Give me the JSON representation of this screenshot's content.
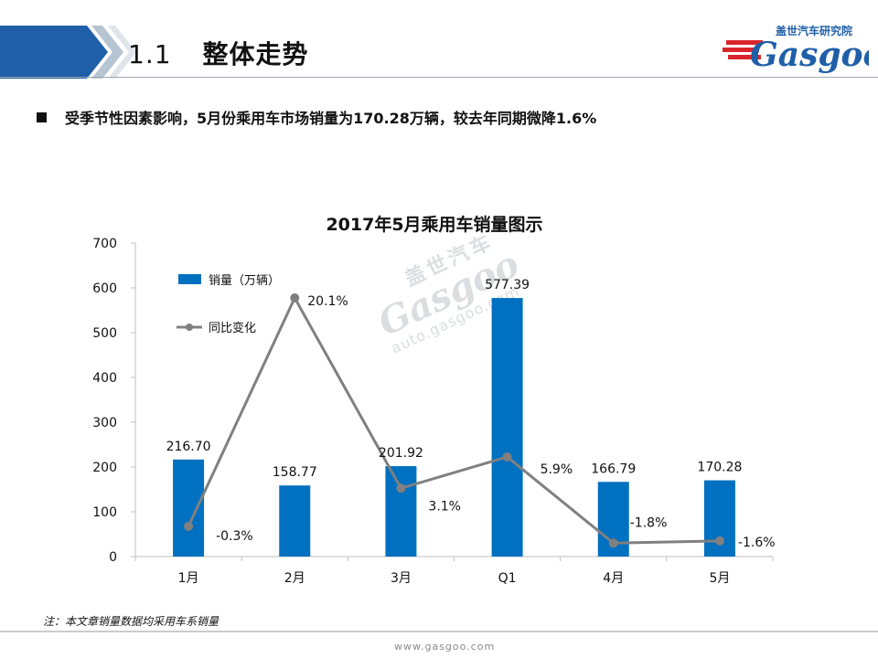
{
  "section": {
    "number": "1.1",
    "title": "整体走势"
  },
  "logo": {
    "cn": "盖世汽车研究院",
    "en": "Gasgoo"
  },
  "bullet": "受季节性因素影响，5月份乘用车市场销量为170.28万辆，较去年同期微降1.6%",
  "watermark": {
    "cn": "盖世汽车",
    "en": "Gasgoo",
    "url": "auto.gasgoo.com"
  },
  "footnote": "注：本文章销量数据均采用车系销量",
  "footer_url": "www.gasgoo.com",
  "colors": {
    "bar": "#0070c0",
    "line": "#808080",
    "header_blue": "#1f5fa8",
    "logo_red": "#d9262c"
  },
  "chart_data": {
    "type": "bar",
    "title": "2017年5月乘用车销量图示",
    "categories": [
      "1月",
      "2月",
      "3月",
      "Q1",
      "4月",
      "5月"
    ],
    "ylim": [
      0,
      700
    ],
    "yticks": [
      "0",
      "100",
      "200",
      "300",
      "400",
      "500",
      "600",
      "700"
    ],
    "grid": false,
    "legend_position": "top-left",
    "series": [
      {
        "name": "销量（万辆）",
        "kind": "bar",
        "values": [
          216.7,
          158.77,
          201.92,
          577.39,
          166.79,
          170.28
        ],
        "labels": [
          "216.70",
          "158.77",
          "201.92",
          "577.39",
          "166.79",
          "170.28"
        ]
      },
      {
        "name": "同比变化",
        "kind": "line",
        "values": [
          -0.3,
          20.1,
          3.1,
          5.9,
          -1.8,
          -1.6
        ],
        "labels": [
          "-0.3%",
          "20.1%",
          "3.1%",
          "5.9%",
          "-1.8%",
          "-1.6%"
        ],
        "secondary_axis_range": [
          -3,
          25
        ]
      }
    ]
  }
}
